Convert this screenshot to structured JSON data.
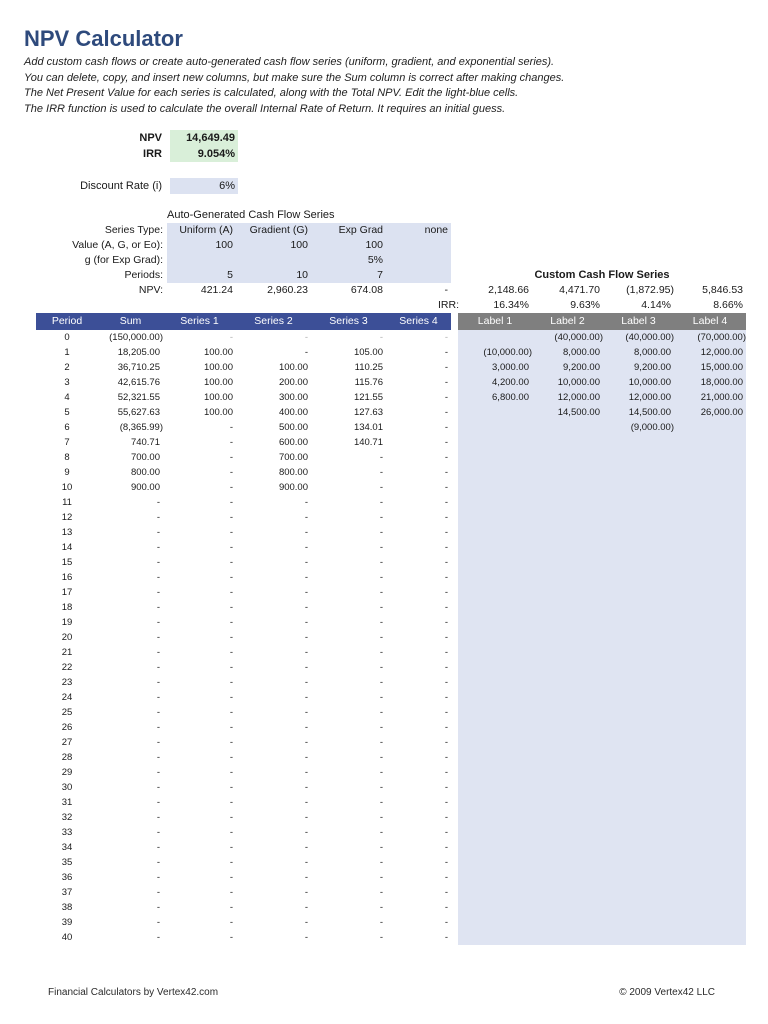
{
  "page": {
    "title": "NPV Calculator",
    "intro": [
      "Add custom cash flows or create auto-generated cash flow series (uniform, gradient, and exponential series).",
      "You can delete, copy, and insert new columns, but make sure the Sum column is correct after making changes.",
      "The Net Present Value for each series is calculated, along with the Total NPV. Edit the light-blue cells.",
      "The IRR function is used to calculate the overall Internal Rate of Return. It requires an initial guess."
    ],
    "footer_left": "Financial Calculators by Vertex42.com",
    "footer_right": "© 2009 Vertex42 LLC"
  },
  "summary": {
    "npv_label": "NPV",
    "npv_value": "14,649.49",
    "irr_label": "IRR",
    "irr_value": "9.054%",
    "discount_label": "Discount Rate (i)",
    "discount_value": "6%"
  },
  "autogen": {
    "title": "Auto-Generated Cash Flow Series",
    "row_labels": [
      "Series Type:",
      "Value (A, G, or Eo):",
      "g (for Exp Grad):",
      "Periods:",
      "NPV:"
    ],
    "series_types": [
      "Uniform (A)",
      "Gradient (G)",
      "Exp Grad",
      "none"
    ],
    "values": [
      "100",
      "100",
      "100",
      ""
    ],
    "g_values": [
      "",
      "",
      "5%",
      ""
    ],
    "periods": [
      "5",
      "10",
      "7",
      ""
    ],
    "npv": [
      "421.24",
      "2,960.23",
      "674.08",
      "-"
    ],
    "irr_label": "IRR:"
  },
  "custom": {
    "title": "Custom Cash Flow Series",
    "npv": [
      "2,148.66",
      "4,471.70",
      "(1,872.95)",
      "5,846.53"
    ],
    "irr": [
      "16.34%",
      "9.63%",
      "4.14%",
      "8.66%"
    ]
  },
  "table": {
    "headers_main": [
      "Period",
      "Sum",
      "Series 1",
      "Series 2",
      "Series 3",
      "Series 4"
    ],
    "headers_labels": [
      "Label 1",
      "Label 2",
      "Label 3",
      "Label 4"
    ],
    "rows": [
      {
        "period": "0",
        "cells": [
          "(150,000.00)",
          "-",
          "-",
          "-",
          "-",
          "",
          "(40,000.00)",
          "(40,000.00)",
          "(70,000.00)"
        ]
      },
      {
        "period": "1",
        "cells": [
          "18,205.00",
          "100.00",
          "-",
          "105.00",
          "-",
          "(10,000.00)",
          "8,000.00",
          "8,000.00",
          "12,000.00"
        ]
      },
      {
        "period": "2",
        "cells": [
          "36,710.25",
          "100.00",
          "100.00",
          "110.25",
          "-",
          "3,000.00",
          "9,200.00",
          "9,200.00",
          "15,000.00"
        ]
      },
      {
        "period": "3",
        "cells": [
          "42,615.76",
          "100.00",
          "200.00",
          "115.76",
          "-",
          "4,200.00",
          "10,000.00",
          "10,000.00",
          "18,000.00"
        ]
      },
      {
        "period": "4",
        "cells": [
          "52,321.55",
          "100.00",
          "300.00",
          "121.55",
          "-",
          "6,800.00",
          "12,000.00",
          "12,000.00",
          "21,000.00"
        ]
      },
      {
        "period": "5",
        "cells": [
          "55,627.63",
          "100.00",
          "400.00",
          "127.63",
          "-",
          "",
          "14,500.00",
          "14,500.00",
          "26,000.00"
        ]
      },
      {
        "period": "6",
        "cells": [
          "(8,365.99)",
          "-",
          "500.00",
          "134.01",
          "-",
          "",
          "",
          "(9,000.00)",
          ""
        ]
      },
      {
        "period": "7",
        "cells": [
          "740.71",
          "-",
          "600.00",
          "140.71",
          "-",
          "",
          "",
          "",
          ""
        ]
      },
      {
        "period": "8",
        "cells": [
          "700.00",
          "-",
          "700.00",
          "-",
          "-",
          "",
          "",
          "",
          ""
        ]
      },
      {
        "period": "9",
        "cells": [
          "800.00",
          "-",
          "800.00",
          "-",
          "-",
          "",
          "",
          "",
          ""
        ]
      },
      {
        "period": "10",
        "cells": [
          "900.00",
          "-",
          "900.00",
          "-",
          "-",
          "",
          "",
          "",
          ""
        ]
      },
      {
        "period": "11",
        "cells": [
          "-",
          "-",
          "-",
          "-",
          "-",
          "",
          "",
          "",
          ""
        ]
      },
      {
        "period": "12",
        "cells": [
          "-",
          "-",
          "-",
          "-",
          "-",
          "",
          "",
          "",
          ""
        ]
      },
      {
        "period": "13",
        "cells": [
          "-",
          "-",
          "-",
          "-",
          "-",
          "",
          "",
          "",
          ""
        ]
      },
      {
        "period": "14",
        "cells": [
          "-",
          "-",
          "-",
          "-",
          "-",
          "",
          "",
          "",
          ""
        ]
      },
      {
        "period": "15",
        "cells": [
          "-",
          "-",
          "-",
          "-",
          "-",
          "",
          "",
          "",
          ""
        ]
      },
      {
        "period": "16",
        "cells": [
          "-",
          "-",
          "-",
          "-",
          "-",
          "",
          "",
          "",
          ""
        ]
      },
      {
        "period": "17",
        "cells": [
          "-",
          "-",
          "-",
          "-",
          "-",
          "",
          "",
          "",
          ""
        ]
      },
      {
        "period": "18",
        "cells": [
          "-",
          "-",
          "-",
          "-",
          "-",
          "",
          "",
          "",
          ""
        ]
      },
      {
        "period": "19",
        "cells": [
          "-",
          "-",
          "-",
          "-",
          "-",
          "",
          "",
          "",
          ""
        ]
      },
      {
        "period": "20",
        "cells": [
          "-",
          "-",
          "-",
          "-",
          "-",
          "",
          "",
          "",
          ""
        ]
      },
      {
        "period": "21",
        "cells": [
          "-",
          "-",
          "-",
          "-",
          "-",
          "",
          "",
          "",
          ""
        ]
      },
      {
        "period": "22",
        "cells": [
          "-",
          "-",
          "-",
          "-",
          "-",
          "",
          "",
          "",
          ""
        ]
      },
      {
        "period": "23",
        "cells": [
          "-",
          "-",
          "-",
          "-",
          "-",
          "",
          "",
          "",
          ""
        ]
      },
      {
        "period": "24",
        "cells": [
          "-",
          "-",
          "-",
          "-",
          "-",
          "",
          "",
          "",
          ""
        ]
      },
      {
        "period": "25",
        "cells": [
          "-",
          "-",
          "-",
          "-",
          "-",
          "",
          "",
          "",
          ""
        ]
      },
      {
        "period": "26",
        "cells": [
          "-",
          "-",
          "-",
          "-",
          "-",
          "",
          "",
          "",
          ""
        ]
      },
      {
        "period": "27",
        "cells": [
          "-",
          "-",
          "-",
          "-",
          "-",
          "",
          "",
          "",
          ""
        ]
      },
      {
        "period": "28",
        "cells": [
          "-",
          "-",
          "-",
          "-",
          "-",
          "",
          "",
          "",
          ""
        ]
      },
      {
        "period": "29",
        "cells": [
          "-",
          "-",
          "-",
          "-",
          "-",
          "",
          "",
          "",
          ""
        ]
      },
      {
        "period": "30",
        "cells": [
          "-",
          "-",
          "-",
          "-",
          "-",
          "",
          "",
          "",
          ""
        ]
      },
      {
        "period": "31",
        "cells": [
          "-",
          "-",
          "-",
          "-",
          "-",
          "",
          "",
          "",
          ""
        ]
      },
      {
        "period": "32",
        "cells": [
          "-",
          "-",
          "-",
          "-",
          "-",
          "",
          "",
          "",
          ""
        ]
      },
      {
        "period": "33",
        "cells": [
          "-",
          "-",
          "-",
          "-",
          "-",
          "",
          "",
          "",
          ""
        ]
      },
      {
        "period": "34",
        "cells": [
          "-",
          "-",
          "-",
          "-",
          "-",
          "",
          "",
          "",
          ""
        ]
      },
      {
        "period": "35",
        "cells": [
          "-",
          "-",
          "-",
          "-",
          "-",
          "",
          "",
          "",
          ""
        ]
      },
      {
        "period": "36",
        "cells": [
          "-",
          "-",
          "-",
          "-",
          "-",
          "",
          "",
          "",
          ""
        ]
      },
      {
        "period": "37",
        "cells": [
          "-",
          "-",
          "-",
          "-",
          "-",
          "",
          "",
          "",
          ""
        ]
      },
      {
        "period": "38",
        "cells": [
          "-",
          "-",
          "-",
          "-",
          "-",
          "",
          "",
          "",
          ""
        ]
      },
      {
        "period": "39",
        "cells": [
          "-",
          "-",
          "-",
          "-",
          "-",
          "",
          "",
          "",
          ""
        ]
      },
      {
        "period": "40",
        "cells": [
          "-",
          "-",
          "-",
          "-",
          "-",
          "",
          "",
          "",
          ""
        ]
      }
    ]
  },
  "colors": {
    "title_blue": "#2e4a7c",
    "table_header_blue": "#3c4f97",
    "label_header_gray": "#7f7f7f",
    "editable_light_blue": "#dce2f1",
    "result_light_green": "#d9efd9"
  }
}
